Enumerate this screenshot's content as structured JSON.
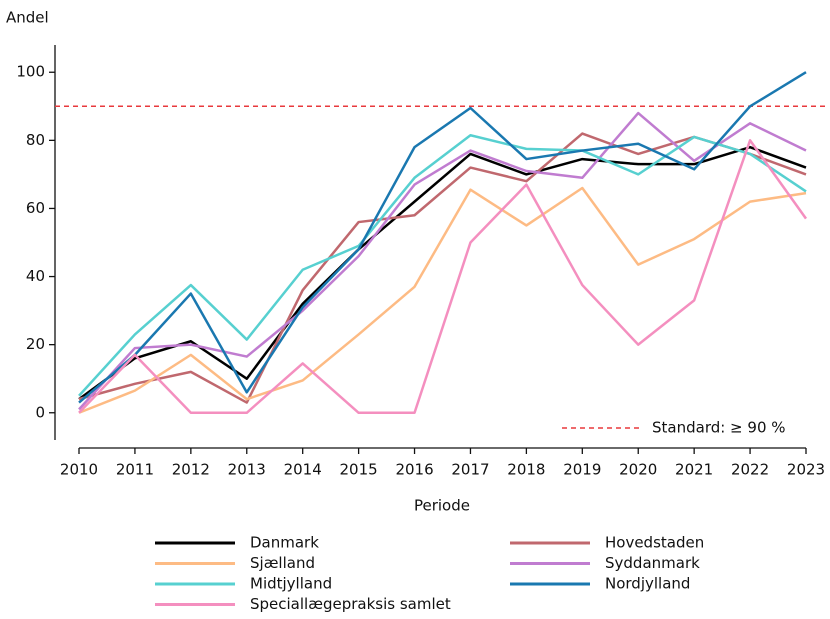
{
  "chart_data": {
    "type": "line",
    "y_label": "Andel",
    "x_label": "Periode",
    "x": [
      2010,
      2011,
      2012,
      2013,
      2014,
      2015,
      2016,
      2017,
      2018,
      2019,
      2020,
      2021,
      2022,
      2023
    ],
    "xlim": [
      2010,
      2023
    ],
    "xticks": [
      2010,
      2011,
      2012,
      2013,
      2014,
      2015,
      2016,
      2017,
      2018,
      2019,
      2020,
      2021,
      2022,
      2023
    ],
    "ylim": [
      -8,
      108
    ],
    "yticks": [
      0,
      20,
      40,
      60,
      80,
      100
    ],
    "reference_line": {
      "value": 90,
      "label": "Standard: ≥ 90 %",
      "color": "#e8393c"
    },
    "series": [
      {
        "name": "Danmark",
        "color": "#000000",
        "values": [
          4,
          16,
          21,
          10,
          32,
          48,
          62,
          76,
          70,
          74.5,
          73,
          73,
          78,
          72
        ]
      },
      {
        "name": "Hovedstaden",
        "color": "#c0686e",
        "values": [
          4,
          8.5,
          12,
          3,
          36,
          56,
          58,
          72,
          68,
          82,
          76,
          81,
          76,
          70
        ]
      },
      {
        "name": "Sjælland",
        "color": "#fdbb84",
        "values": [
          0,
          6.5,
          17,
          4,
          9.5,
          23,
          37,
          65.5,
          55,
          66,
          43.5,
          51,
          62,
          64.5
        ]
      },
      {
        "name": "Syddanmark",
        "color": "#c07cd0",
        "values": [
          1,
          19,
          20,
          16.5,
          30,
          46,
          67,
          77,
          71,
          69,
          88,
          74,
          85,
          77
        ]
      },
      {
        "name": "Midtjylland",
        "color": "#57d0d0",
        "values": [
          5,
          23,
          37.5,
          21.5,
          42,
          49,
          69,
          81.5,
          77.5,
          77,
          70,
          81,
          76,
          65
        ]
      },
      {
        "name": "Nordjylland",
        "color": "#1a78b0",
        "values": [
          3,
          17,
          35,
          6,
          31,
          48,
          78,
          89.5,
          74.5,
          77,
          79,
          71.5,
          90,
          100
        ]
      },
      {
        "name": "Speciallægepraksis samlet",
        "color": "#f48fbf",
        "values": [
          0,
          17,
          0,
          0,
          14.5,
          0,
          0,
          50,
          67,
          37.5,
          20,
          33,
          80,
          57
        ]
      }
    ]
  }
}
